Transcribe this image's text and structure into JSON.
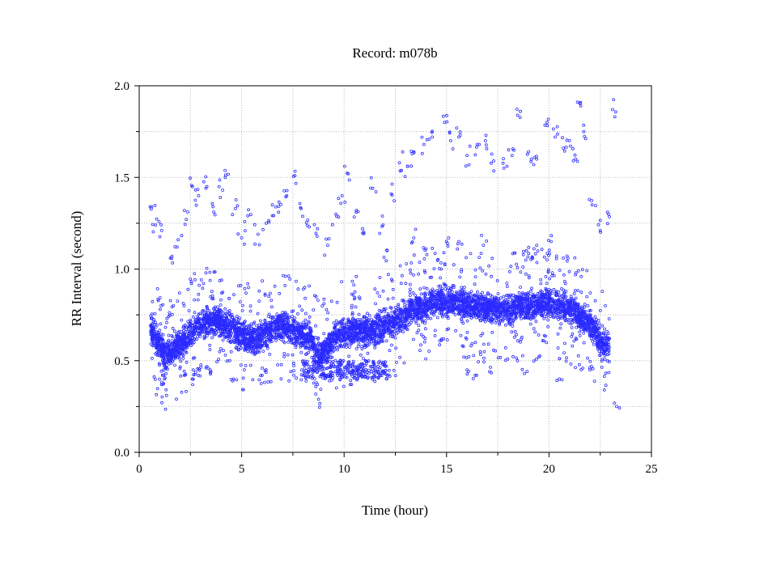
{
  "chart_data": {
    "type": "scatter",
    "title": "Record:  m078b",
    "xlabel": "Time (hour)",
    "ylabel": "RR Interval (second)",
    "xlim": [
      0,
      25
    ],
    "ylim": [
      0.0,
      2.0
    ],
    "xticks": [
      0,
      5,
      10,
      15,
      20,
      25
    ],
    "xtick_labels": [
      "0",
      "5",
      "10",
      "15",
      "20",
      "25"
    ],
    "yticks": [
      0.0,
      0.5,
      1.0,
      1.5,
      2.0
    ],
    "ytick_labels": [
      "0.0",
      "0.5",
      "1.0",
      "1.5",
      "2.0"
    ],
    "grid": true,
    "marker_color": "#2a2aff",
    "marker_style": "hollow-circle",
    "series": [
      {
        "baseline": [
          [
            0.6,
            0.67
          ],
          [
            0.9,
            0.6
          ],
          [
            1.3,
            0.52
          ],
          [
            1.8,
            0.57
          ],
          [
            2.3,
            0.62
          ],
          [
            2.8,
            0.69
          ],
          [
            3.3,
            0.71
          ],
          [
            3.8,
            0.72
          ],
          [
            4.3,
            0.69
          ],
          [
            4.8,
            0.65
          ],
          [
            5.3,
            0.62
          ],
          [
            5.8,
            0.62
          ],
          [
            6.3,
            0.66
          ],
          [
            6.8,
            0.69
          ],
          [
            7.3,
            0.68
          ],
          [
            7.8,
            0.65
          ],
          [
            8.3,
            0.62
          ],
          [
            8.8,
            0.53
          ],
          [
            9.2,
            0.57
          ],
          [
            9.6,
            0.64
          ],
          [
            10.1,
            0.66
          ],
          [
            10.6,
            0.67
          ],
          [
            11.1,
            0.66
          ],
          [
            11.6,
            0.67
          ],
          [
            12.1,
            0.7
          ],
          [
            12.6,
            0.72
          ],
          [
            13.1,
            0.76
          ],
          [
            13.6,
            0.79
          ],
          [
            14.1,
            0.81
          ],
          [
            14.6,
            0.83
          ],
          [
            15.1,
            0.82
          ],
          [
            15.6,
            0.82
          ],
          [
            16.1,
            0.8
          ],
          [
            16.6,
            0.79
          ],
          [
            17.1,
            0.79
          ],
          [
            17.6,
            0.78
          ],
          [
            18.1,
            0.78
          ],
          [
            18.6,
            0.8
          ],
          [
            19.1,
            0.79
          ],
          [
            19.6,
            0.81
          ],
          [
            20.1,
            0.82
          ],
          [
            20.6,
            0.8
          ],
          [
            21.1,
            0.78
          ],
          [
            21.6,
            0.73
          ],
          [
            22.1,
            0.69
          ],
          [
            22.5,
            0.61
          ],
          [
            22.8,
            0.57
          ],
          [
            22.95,
            0.58
          ]
        ],
        "band_halfwidth": 0.09,
        "time_range": [
          0.55,
          22.95
        ],
        "upper_outliers": [
          [
            0.6,
            1.34
          ],
          [
            0.8,
            1.24
          ],
          [
            1.1,
            1.21
          ],
          [
            1.6,
            1.07
          ],
          [
            1.9,
            1.16
          ],
          [
            2.3,
            1.27
          ],
          [
            2.6,
            1.45
          ],
          [
            2.9,
            1.4
          ],
          [
            3.3,
            1.45
          ],
          [
            3.6,
            1.34
          ],
          [
            3.9,
            1.45
          ],
          [
            4.2,
            1.5
          ],
          [
            4.7,
            1.33
          ],
          [
            5.0,
            1.17
          ],
          [
            5.3,
            1.29
          ],
          [
            5.8,
            1.19
          ],
          [
            6.2,
            1.25
          ],
          [
            6.5,
            1.35
          ],
          [
            6.8,
            1.31
          ],
          [
            7.2,
            1.4
          ],
          [
            7.6,
            1.51
          ],
          [
            7.9,
            1.33
          ],
          [
            8.3,
            1.23
          ],
          [
            8.7,
            1.22
          ],
          [
            9.2,
            1.13
          ],
          [
            9.6,
            1.3
          ],
          [
            9.9,
            1.4
          ],
          [
            10.2,
            1.52
          ],
          [
            10.6,
            1.32
          ],
          [
            10.9,
            1.22
          ],
          [
            11.4,
            1.44
          ],
          [
            11.9,
            1.24
          ],
          [
            12.3,
            1.41
          ],
          [
            12.7,
            1.58
          ],
          [
            13.1,
            1.56
          ],
          [
            13.4,
            1.64
          ],
          [
            13.9,
            1.68
          ],
          [
            14.3,
            1.72
          ],
          [
            14.9,
            1.8
          ],
          [
            15.2,
            1.7
          ],
          [
            15.6,
            1.72
          ],
          [
            16.0,
            1.62
          ],
          [
            16.5,
            1.68
          ],
          [
            16.9,
            1.7
          ],
          [
            17.3,
            1.59
          ],
          [
            17.8,
            1.55
          ],
          [
            18.2,
            1.62
          ],
          [
            18.6,
            1.86
          ],
          [
            19.0,
            1.64
          ],
          [
            19.4,
            1.6
          ],
          [
            19.9,
            1.8
          ],
          [
            20.3,
            1.72
          ],
          [
            20.7,
            1.66
          ],
          [
            21.0,
            1.7
          ],
          [
            21.3,
            1.6
          ],
          [
            21.7,
            1.75
          ],
          [
            22.1,
            1.35
          ],
          [
            22.5,
            1.21
          ],
          [
            22.9,
            1.3
          ],
          [
            21.55,
            1.89
          ],
          [
            23.1,
            1.87
          ],
          [
            15.1,
            1.17
          ],
          [
            15.6,
            1.15
          ],
          [
            16.8,
            1.13
          ],
          [
            18.9,
            1.1
          ],
          [
            19.4,
            1.13
          ],
          [
            20.1,
            1.15
          ],
          [
            13.4,
            1.17
          ],
          [
            14.0,
            1.11
          ],
          [
            12.1,
            1.1
          ]
        ],
        "lower_outliers": [
          [
            1.2,
            0.45
          ],
          [
            2.2,
            0.42
          ],
          [
            2.6,
            0.4
          ],
          [
            3.5,
            0.44
          ],
          [
            4.6,
            0.4
          ],
          [
            6.0,
            0.42
          ],
          [
            7.4,
            0.44
          ],
          [
            8.0,
            0.42
          ],
          [
            8.7,
            0.37
          ],
          [
            9.3,
            0.42
          ],
          [
            9.8,
            0.4
          ],
          [
            10.3,
            0.37
          ],
          [
            10.8,
            0.43
          ],
          [
            11.4,
            0.41
          ],
          [
            12.1,
            0.42
          ],
          [
            16.0,
            0.45
          ],
          [
            16.4,
            0.42
          ],
          [
            17.1,
            0.44
          ],
          [
            18.8,
            0.43
          ],
          [
            20.5,
            0.4
          ],
          [
            22.0,
            0.45
          ],
          [
            23.3,
            0.25
          ]
        ]
      }
    ]
  }
}
